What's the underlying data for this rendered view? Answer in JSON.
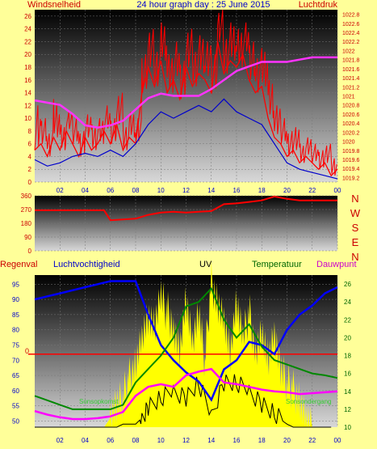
{
  "colors": {
    "page_bg": "#ffff99",
    "wind": "#ff0000",
    "gust": "#ff0000",
    "wind_avg": "#0000cc",
    "pressure": "#ff33ff",
    "direction": "#ff0000",
    "humidity": "#0000ff",
    "temperature": "#008800",
    "dewpoint": "#ff00ff",
    "uv": "#000000",
    "solar": "#ffff00",
    "rain": "#ff0000",
    "title": "#0000cc",
    "axis_red": "#cc0000",
    "axis_blue": "#0000cc",
    "axis_green": "#006600"
  },
  "header": {
    "left": "Windsnelheid",
    "center": "24 hour graph day : 25 June 2015",
    "right": "Luchtdruk"
  },
  "compass_letters": [
    "N",
    "W",
    "S",
    "E",
    "N"
  ],
  "legend2": {
    "rain": "Regenval",
    "humidity": "Luchtvochtigheid",
    "uv": "UV",
    "temperature": "Temperatuur",
    "dewpoint": "Dauwpunt",
    "sunrise": "Sonsopkomst",
    "sunset": "Sonsondergang"
  },
  "x_ticks": [
    "02",
    "04",
    "06",
    "08",
    "10",
    "12",
    "14",
    "16",
    "18",
    "20",
    "22",
    "00"
  ],
  "chart_data": [
    {
      "type": "line",
      "title": "24 hour graph day : 25 June 2015",
      "x_unit": "hour",
      "xlim": [
        0,
        24
      ],
      "left_axis": {
        "label": "Windsnelheid",
        "ticks": [
          "0",
          "2",
          "4",
          "6",
          "8",
          "10",
          "12",
          "14",
          "16",
          "18",
          "20",
          "22",
          "24",
          "26"
        ],
        "ylim": [
          0,
          27
        ]
      },
      "right_axis": {
        "label": "Luchtdruk",
        "ticks": [
          "1019.2",
          "1019.4",
          "1019.6",
          "1019.8",
          "1020",
          "1020.2",
          "1020.4",
          "1020.6",
          "1020.8",
          "1021",
          "1021.2",
          "1021.4",
          "1021.6",
          "1021.8",
          "1022",
          "1022.2",
          "1022.4",
          "1022.6",
          "1022.8"
        ],
        "ylim": [
          1019.1,
          1022.9
        ]
      },
      "series": [
        {
          "key": "wind",
          "axis": "left",
          "x": [
            0,
            0.5,
            1,
            1.5,
            2,
            2.5,
            3,
            3.5,
            4,
            4.5,
            5,
            5.5,
            6,
            6.5,
            7,
            7.5,
            8,
            8.5,
            9,
            9.5,
            10,
            10.5,
            11,
            11.5,
            12,
            12.5,
            13,
            13.5,
            14,
            14.5,
            15,
            15.5,
            16,
            16.5,
            17,
            17.5,
            18,
            18.5,
            19,
            19.5,
            20,
            20.5,
            21,
            21.5,
            22,
            22.5,
            23,
            23.5,
            24
          ],
          "values": [
            5,
            6,
            4,
            7,
            5,
            8,
            6,
            4,
            7,
            5,
            6,
            8,
            6,
            9,
            5,
            7,
            6,
            14,
            18,
            15,
            19,
            14,
            16,
            13,
            18,
            15,
            17,
            16,
            14,
            22,
            17,
            19,
            18,
            20,
            16,
            14,
            15,
            10,
            7,
            6,
            4,
            5,
            3,
            4,
            3,
            2,
            3,
            1,
            2
          ],
          "peaks": [
            12,
            10,
            8,
            13,
            9,
            11,
            10,
            8,
            11,
            9,
            10,
            12,
            10,
            14,
            9,
            11,
            10,
            20,
            24,
            21,
            25,
            20,
            22,
            19,
            24,
            21,
            23,
            22,
            20,
            27,
            23,
            25,
            24,
            25,
            22,
            20,
            21,
            16,
            12,
            10,
            8,
            9,
            6,
            7,
            6,
            5,
            6,
            4,
            5
          ]
        },
        {
          "key": "wind_avg",
          "axis": "left",
          "x": [
            0,
            1,
            2,
            3,
            4,
            5,
            6,
            7,
            8,
            9,
            10,
            11,
            12,
            13,
            14,
            15,
            16,
            17,
            18,
            19,
            20,
            21,
            22,
            23,
            24
          ],
          "values": [
            3.5,
            2.5,
            3,
            4,
            4.5,
            4,
            5,
            4,
            6,
            9,
            11,
            10,
            11,
            12,
            11,
            13,
            11,
            10,
            9,
            6,
            3,
            2,
            1.5,
            1,
            0.5
          ]
        },
        {
          "key": "pressure",
          "axis": "right",
          "x": [
            0,
            1,
            2,
            3,
            4,
            5,
            6,
            7,
            8,
            9,
            10,
            11,
            12,
            13,
            14,
            15,
            16,
            17,
            18,
            19,
            20,
            21,
            22,
            23,
            24
          ],
          "values": [
            1020.9,
            1020.85,
            1020.8,
            1020.6,
            1020.35,
            1020.3,
            1020.35,
            1020.45,
            1020.7,
            1020.95,
            1021.05,
            1021.0,
            1021.0,
            1021.0,
            1021.15,
            1021.35,
            1021.55,
            1021.65,
            1021.75,
            1021.75,
            1021.75,
            1021.8,
            1021.85,
            1021.85,
            1021.85
          ]
        }
      ]
    },
    {
      "type": "line",
      "x_unit": "hour",
      "xlim": [
        0,
        24
      ],
      "left_axis": {
        "label": "",
        "ticks": [
          "0",
          "90",
          "180",
          "270",
          "360"
        ],
        "ylim": [
          0,
          360
        ]
      },
      "series": [
        {
          "key": "direction",
          "axis": "left",
          "x": [
            0,
            2,
            4,
            5.5,
            6,
            7,
            8,
            9,
            10,
            11,
            12,
            13,
            14,
            15,
            16,
            17,
            18,
            19,
            20,
            21,
            22,
            23,
            24
          ],
          "values": [
            265,
            265,
            265,
            265,
            200,
            205,
            210,
            235,
            250,
            255,
            250,
            255,
            260,
            305,
            310,
            320,
            330,
            355,
            340,
            330,
            330,
            330,
            330
          ]
        }
      ]
    },
    {
      "type": "line",
      "x_unit": "hour",
      "xlim": [
        0,
        24
      ],
      "left_axis": {
        "label": "Luchtvochtigheid",
        "ticks": [
          "50",
          "55",
          "60",
          "65",
          "70",
          "75",
          "80",
          "85",
          "90",
          "95"
        ],
        "ylim": [
          48,
          98
        ]
      },
      "right_axis": {
        "label": "Temperatuur",
        "ticks": [
          "10",
          "12",
          "14",
          "16",
          "18",
          "20",
          "22",
          "24",
          "26"
        ],
        "ylim": [
          10,
          27
        ]
      },
      "rain_marker": {
        "label": "0",
        "y": 72
      },
      "series": [
        {
          "key": "humidity",
          "axis": "left",
          "x": [
            0,
            1,
            2,
            3,
            4,
            5,
            6,
            7,
            8,
            9,
            10,
            11,
            12,
            13,
            14,
            15,
            16,
            17,
            18,
            19,
            20,
            21,
            22,
            23,
            24
          ],
          "values": [
            90,
            91,
            92,
            93,
            94,
            95,
            96,
            96,
            96,
            85,
            75,
            70,
            66,
            63,
            57,
            67,
            70,
            76,
            75,
            72,
            80,
            85,
            88,
            92,
            94
          ]
        },
        {
          "key": "temperature",
          "axis": "right",
          "x": [
            0,
            1,
            2,
            3,
            4,
            5,
            6,
            7,
            8,
            9,
            10,
            11,
            12,
            13,
            14,
            15,
            16,
            17,
            18,
            19,
            20,
            21,
            22,
            23,
            24
          ],
          "values": [
            13.5,
            13.0,
            12.5,
            12.0,
            12.0,
            12.0,
            12.0,
            12.5,
            15,
            16.5,
            18,
            20,
            23.5,
            24,
            25.5,
            22,
            20,
            21.5,
            19,
            17.5,
            17,
            16.5,
            16.0,
            15.8,
            15.5
          ]
        },
        {
          "key": "dewpoint",
          "axis": "right",
          "x": [
            0,
            1,
            2,
            3,
            4,
            5,
            6,
            7,
            8,
            9,
            10,
            11,
            12,
            13,
            14,
            15,
            16,
            17,
            18,
            19,
            20,
            21,
            22,
            23,
            24
          ],
          "values": [
            11.8,
            11.4,
            11.1,
            10.9,
            10.9,
            11.0,
            11.2,
            11.7,
            13.5,
            14.5,
            14.8,
            14.5,
            15.8,
            16.2,
            16.5,
            15.0,
            14.8,
            14.5,
            14.2,
            14.0,
            13.9,
            13.7,
            13.8,
            13.9,
            14.0
          ]
        },
        {
          "key": "uv",
          "axis": "left",
          "x": [
            0,
            6,
            6.5,
            7,
            8,
            8.5,
            9,
            10,
            11,
            12,
            13,
            14,
            15,
            16,
            17,
            18,
            19,
            20,
            20.5,
            21,
            24
          ],
          "values": [
            48,
            48,
            48,
            49,
            49,
            51,
            55,
            57,
            60,
            58,
            62,
            52,
            63,
            62,
            60,
            56,
            52,
            49,
            48,
            48,
            48
          ]
        },
        {
          "key": "solar",
          "axis": "left",
          "x": [
            0,
            5.5,
            6,
            6.5,
            7,
            7.5,
            8,
            8.5,
            9,
            9.5,
            10,
            10.5,
            11,
            11.5,
            12,
            12.5,
            13,
            13.5,
            14,
            14.5,
            15,
            15.5,
            16,
            16.5,
            17,
            17.5,
            18,
            18.5,
            19,
            19.5,
            20,
            20.5,
            21,
            21.5,
            22,
            24
          ],
          "values": [
            48,
            48,
            51,
            54,
            58,
            64,
            70,
            78,
            84,
            80,
            90,
            86,
            82,
            74,
            90,
            75,
            84,
            70,
            96,
            90,
            84,
            72,
            88,
            76,
            86,
            74,
            80,
            70,
            78,
            66,
            63,
            60,
            58,
            52,
            48,
            48
          ]
        }
      ]
    }
  ]
}
